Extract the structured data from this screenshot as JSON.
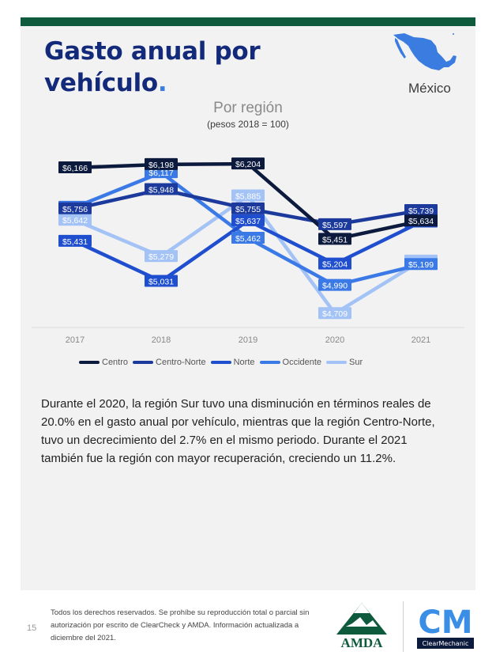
{
  "page": {
    "title_line1": "Gasto anual por",
    "title_line2": "vehículo",
    "title_dot": ".",
    "country": "México",
    "paragraph": "Durante el 2020, la región Sur tuvo una disminución en términos reales de 20.0% en el gasto anual por vehículo, mientras que la región Centro-Norte, tuvo un decrecimiento del 2.7% en el mismo periodo. Durante el 2021 también fue la región con mayor recuperación, creciendo un 11.2%.",
    "page_number": "15",
    "footer": "Todos los derechos reservados. Se prohíbe su reproducción total o parcial sin autorización por escrito de ClearCheck y AMDA. Información actualizada a diciembre del 2021.",
    "logos": {
      "amda": "AMDA",
      "cm": "CM",
      "cm_name": "ClearMechanic"
    }
  },
  "colors": {
    "title": "#132a7a",
    "accent": "#3a7ce0",
    "top_bar": "#0e5a3c",
    "panel": "#f2f2f2"
  },
  "chart_data": {
    "type": "line",
    "title": "Por región",
    "subtitle": "(pesos 2018 = 100)",
    "xlabel": "",
    "ylabel": "",
    "categories": [
      "2017",
      "2018",
      "2019",
      "2020",
      "2021"
    ],
    "ylim": [
      4600,
      6300
    ],
    "legend_position": "bottom",
    "series": [
      {
        "name": "Centro",
        "color": "#0c1a3e",
        "values": [
          6166,
          6198,
          6204,
          5451,
          5634
        ],
        "labels": [
          "$6,166",
          "$6,198",
          "$6,204",
          "$5,451",
          "$5,634"
        ]
      },
      {
        "name": "Centro-Norte",
        "color": "#1c3a9c",
        "values": [
          5756,
          5948,
          5755,
          5597,
          5739
        ],
        "labels": [
          "$5,756",
          "$5,948",
          "$5,755",
          "$5,597",
          "$5,739"
        ]
      },
      {
        "name": "Norte",
        "color": "#1f4fcf",
        "values": [
          5431,
          5031,
          5637,
          5204,
          5624
        ],
        "labels": [
          "$5,431",
          "$5,031",
          "$5,637",
          "$5,204",
          "$5,624"
        ]
      },
      {
        "name": "Occidente",
        "color": "#3b7ae6",
        "values": [
          5771,
          6117,
          5462,
          4990,
          5199
        ],
        "labels": [
          "$5,771",
          "$6,117",
          "$5,462",
          "$4,990",
          "$5,199"
        ]
      },
      {
        "name": "Sur",
        "color": "#a3c2f5",
        "values": [
          5642,
          5279,
          5885,
          4709,
          5234
        ],
        "labels": [
          "$5,642",
          "$5,279",
          "$5,885",
          "$4,709",
          "$5,234"
        ]
      }
    ]
  }
}
